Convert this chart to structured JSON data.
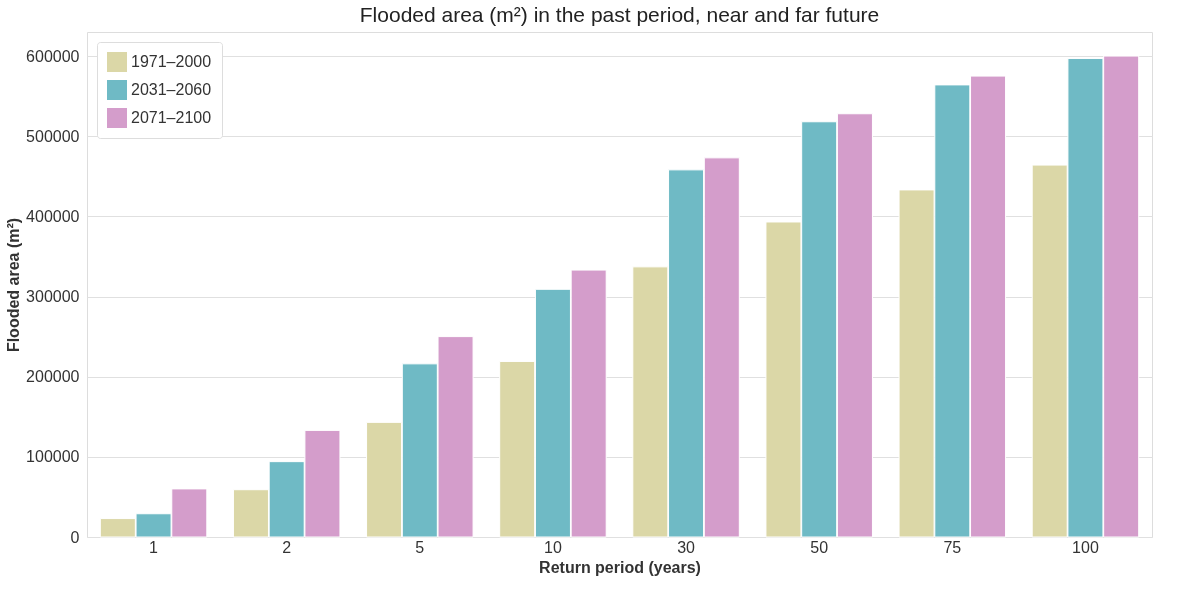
{
  "chart_data": {
    "type": "bar",
    "title": "Flooded area (m²) in the past period, near and far future",
    "xlabel": "Return period (years)",
    "ylabel": "Flooded area (m²)",
    "categories": [
      "1",
      "2",
      "5",
      "10",
      "30",
      "50",
      "75",
      "100"
    ],
    "series": [
      {
        "name": "1971–2000",
        "color": "#dbd7a7",
        "values": [
          23000,
          59000,
          143000,
          219000,
          337000,
          393000,
          433000,
          464000
        ]
      },
      {
        "name": "2031–2060",
        "color": "#6fbac5",
        "values": [
          29000,
          94000,
          216000,
          309000,
          458000,
          518000,
          564000,
          597000
        ]
      },
      {
        "name": "2071–2100",
        "color": "#d49dcb",
        "values": [
          60000,
          133000,
          250000,
          333000,
          473000,
          528000,
          575000,
          600000
        ]
      }
    ],
    "ylim": [
      0,
      630000
    ],
    "yticks": [
      0,
      100000,
      200000,
      300000,
      400000,
      500000,
      600000
    ],
    "grid": "y",
    "legend": "top left"
  }
}
